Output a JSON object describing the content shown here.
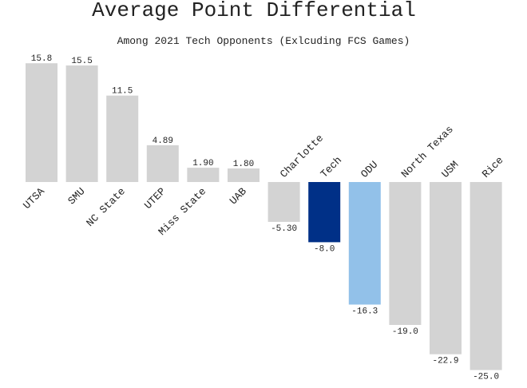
{
  "chart_data": {
    "type": "bar",
    "title": "Average Point Differential",
    "subtitle": "Among 2021 Tech Opponents (Exlcuding FCS Games)",
    "xlabel": "",
    "ylabel": "",
    "ylim": [
      -25.0,
      15.8
    ],
    "grid": false,
    "categories": [
      "UTSA",
      "SMU",
      "NC State",
      "UTEP",
      "Miss State",
      "UAB",
      "Charlotte",
      "Tech",
      "ODU",
      "North Texas",
      "USM",
      "Rice"
    ],
    "values": [
      15.8,
      15.5,
      11.5,
      4.89,
      1.9,
      1.8,
      -5.3,
      -8.0,
      -16.3,
      -19.0,
      -22.9,
      -25.0
    ],
    "value_labels": [
      "15.8",
      "15.5",
      "11.5",
      "4.89",
      "1.90",
      "1.80",
      "-5.30",
      "-8.0",
      "-16.3",
      "-19.0",
      "-22.9",
      "-25.0"
    ],
    "colors": [
      "#d3d3d3",
      "#d3d3d3",
      "#d3d3d3",
      "#d3d3d3",
      "#d3d3d3",
      "#d3d3d3",
      "#d3d3d3",
      "#003087",
      "#92c1e9",
      "#d3d3d3",
      "#d3d3d3",
      "#d3d3d3"
    ]
  }
}
